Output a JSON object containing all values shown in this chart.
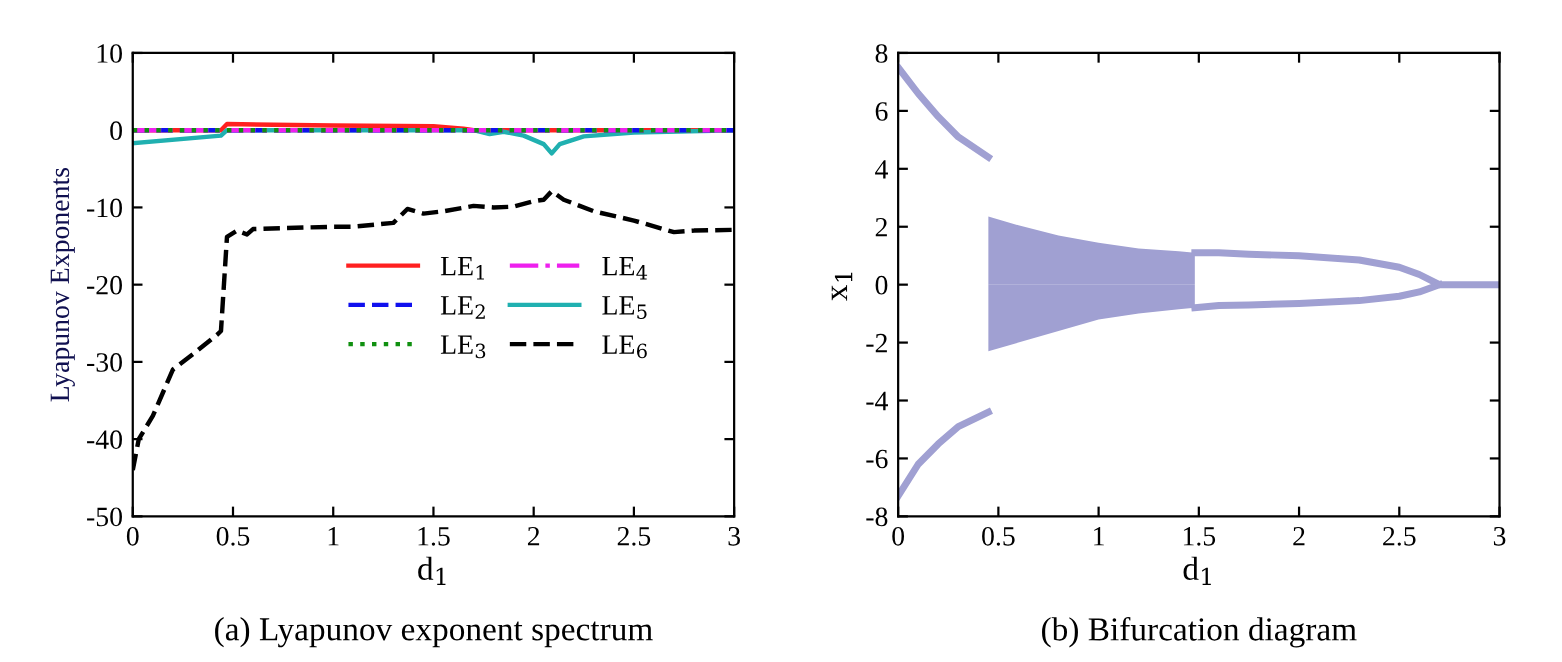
{
  "chart_data": [
    {
      "type": "line",
      "title": "(a) Lyapunov exponent spectrum",
      "xlabel": "d$_{1}$",
      "ylabel": "Lyapunov Exponents",
      "xlim": [
        0,
        3
      ],
      "xticks": [
        0,
        0.5,
        1,
        1.5,
        2,
        2.5,
        3
      ],
      "ylim": [
        -50,
        10
      ],
      "yticks": [
        -50,
        -40,
        -30,
        -20,
        -10,
        0,
        10
      ],
      "grid": false,
      "legend": "right",
      "marker": "none",
      "series": [
        {
          "name": "LE$_{1}$",
          "color": "#ff2020",
          "line_style": "solid",
          "x": [
            0,
            0.44,
            0.47,
            1.0,
            1.5,
            1.65,
            1.7,
            3
          ],
          "values": [
            0,
            0,
            0.8,
            0.6,
            0.5,
            0.2,
            0,
            0
          ]
        },
        {
          "name": "LE$_{2}$",
          "color": "#1010ee",
          "line_style": "dashed",
          "x": [
            0,
            3
          ],
          "values": [
            0,
            0
          ]
        },
        {
          "name": "LE$_{3}$",
          "color": "#109010",
          "line_style": "dotted",
          "x": [
            0,
            3
          ],
          "values": [
            0,
            0
          ]
        },
        {
          "name": "LE$_{4}$",
          "color": "#ee20ee",
          "line_style": "dashdot",
          "x": [
            0,
            3
          ],
          "values": [
            0,
            0
          ]
        },
        {
          "name": "LE$_{5}$",
          "color": "#20b0b0",
          "line_style": "solid",
          "x": [
            0,
            0.44,
            0.47,
            1.7,
            1.78,
            1.85,
            1.95,
            2.05,
            2.09,
            2.13,
            2.25,
            2.5,
            3
          ],
          "values": [
            -1.7,
            -0.7,
            0,
            0,
            -0.5,
            -0.2,
            -0.7,
            -1.8,
            -3.0,
            -1.8,
            -0.8,
            -0.3,
            0
          ]
        },
        {
          "name": "LE$_{6}$",
          "color": "#000000",
          "line_style": "dashed",
          "x": [
            0,
            0.03,
            0.1,
            0.2,
            0.3,
            0.42,
            0.44,
            0.47,
            0.52,
            0.57,
            0.6,
            1.0,
            1.1,
            1.3,
            1.37,
            1.45,
            1.55,
            1.7,
            1.8,
            1.9,
            2.0,
            2.05,
            2.09,
            2.15,
            2.3,
            2.5,
            2.7,
            2.8,
            3
          ],
          "values": [
            -44,
            -40,
            -37,
            -31,
            -29,
            -26.5,
            -26,
            -13.8,
            -13,
            -13.5,
            -12.8,
            -12.5,
            -12.5,
            -12,
            -10.2,
            -10.8,
            -10.5,
            -9.8,
            -10,
            -9.9,
            -9.2,
            -9,
            -7.9,
            -9,
            -10.5,
            -11.7,
            -13.2,
            -13,
            -12.9
          ]
        }
      ]
    },
    {
      "type": "line",
      "title": "(b) Bifurcation diagram",
      "xlabel": "d$_{1}$",
      "ylabel": "x$_{1}$",
      "xlim": [
        0,
        3
      ],
      "xticks": [
        0,
        0.5,
        1,
        1.5,
        2,
        2.5,
        3
      ],
      "ylim": [
        -8,
        8
      ],
      "yticks": [
        -8,
        -6,
        -4,
        -2,
        0,
        2,
        4,
        6,
        8
      ],
      "grid": false,
      "legend": false,
      "marker": "none",
      "series": [
        {
          "color": "#a0a0d2",
          "line_style": "solid",
          "x": [
            0,
            0.1,
            0.2,
            0.3,
            0.45
          ],
          "values": [
            7.5,
            6.6,
            5.8,
            5.1,
            4.4
          ]
        },
        {
          "color": "#a0a0d2",
          "line_style": "solid",
          "x": [
            0,
            0.1,
            0.2,
            0.3,
            0.45
          ],
          "values": [
            -7.3,
            -6.2,
            -5.5,
            -4.9,
            -4.4
          ]
        },
        {
          "type": "area",
          "color": "#a0a0d2",
          "x": [
            0.45,
            0.6,
            0.8,
            1.0,
            1.2,
            1.4,
            1.48
          ],
          "values": [
            2.35,
            2.05,
            1.7,
            1.45,
            1.25,
            1.15,
            1.1
          ]
        },
        {
          "type": "area",
          "color": "#a0a0d2",
          "x": [
            0.45,
            0.6,
            0.8,
            1.0,
            1.2,
            1.4,
            1.48
          ],
          "values": [
            -2.3,
            -2.0,
            -1.6,
            -1.2,
            -1.0,
            -0.85,
            -0.8
          ]
        },
        {
          "color": "#a0a0d2",
          "line_style": "solid",
          "x": [
            1.48,
            1.6,
            1.75,
            2.0,
            2.3,
            2.5,
            2.6,
            2.7,
            3
          ],
          "values": [
            1.1,
            1.1,
            1.05,
            1.0,
            0.85,
            0.6,
            0.35,
            0,
            0
          ]
        },
        {
          "color": "#a0a0d2",
          "line_style": "solid",
          "x": [
            1.48,
            1.6,
            1.75,
            2.0,
            2.3,
            2.5,
            2.6,
            2.7
          ],
          "values": [
            -0.8,
            -0.72,
            -0.7,
            -0.65,
            -0.55,
            -0.4,
            -0.25,
            0
          ]
        }
      ]
    }
  ]
}
